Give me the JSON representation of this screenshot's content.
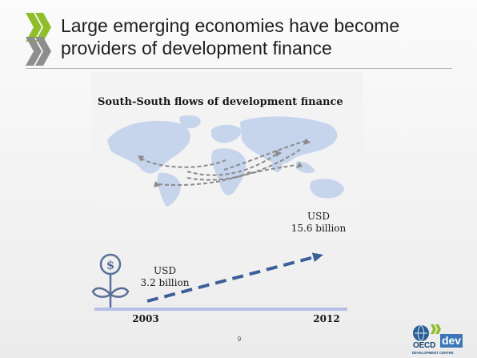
{
  "slide": {
    "title_line1": "Large emerging economies have become",
    "title_line2": "providers of development finance",
    "page_number": "9"
  },
  "figure": {
    "title": "South-South flows of development finance"
  },
  "logo": {
    "word": "OECD",
    "dev": "dev",
    "centre": "DEVELOPMENT CENTRE"
  },
  "colors": {
    "chevron_green": "#8fbe2a",
    "chevron_gray": "#8e8e8e",
    "trend_blue": "#3d5f99",
    "axis_lavender": "#b8bfe6",
    "map_blue": "#c6d4ec",
    "plant_blue": "#5a6f99"
  },
  "icons": {
    "map": "world-map-icon",
    "plant": "dollar-plant-icon"
  },
  "chart_data": {
    "type": "line",
    "x": [
      2003,
      2012
    ],
    "series": [
      {
        "values": [
          3.2,
          15.6
        ],
        "point_labels": [
          [
            "USD",
            "3.2 billion"
          ],
          [
            "USD",
            "15.6 billion"
          ]
        ]
      }
    ],
    "tick_labels": [
      "2003",
      "2012"
    ],
    "units": "USD billion",
    "title": "",
    "xlabel": "",
    "ylabel": "",
    "grid": false
  }
}
